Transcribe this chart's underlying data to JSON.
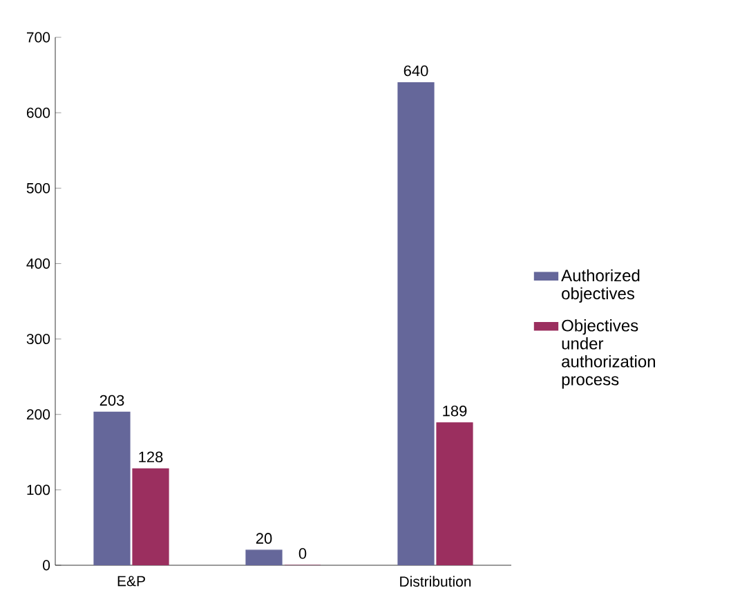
{
  "chart_data": {
    "type": "bar",
    "categories": [
      "E&P",
      null,
      "Distribution"
    ],
    "series": [
      {
        "name": "Authorized objectives",
        "color": "#65679a",
        "values": [
          203,
          20,
          640
        ]
      },
      {
        "name": "Objectives under authorization process",
        "color": "#9b2f5f",
        "values": [
          128,
          0,
          189
        ]
      }
    ],
    "ylim": [
      0,
      700
    ],
    "yticks": [
      0,
      100,
      200,
      300,
      400,
      500,
      600,
      700
    ],
    "data_labels": true,
    "grid": false,
    "legend": "right"
  }
}
